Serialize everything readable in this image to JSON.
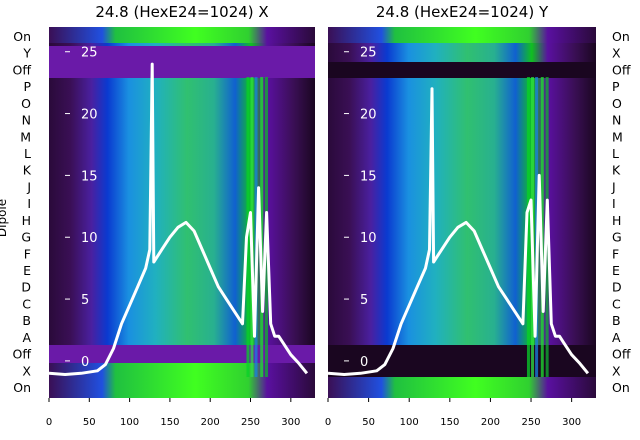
{
  "chart_data": [
    {
      "type": "heatmap",
      "title": "24.8 (HexE24=1024) X",
      "ylabel": "Dipole",
      "x_ticks": [
        "0",
        "50",
        "100",
        "150",
        "200",
        "250",
        "300"
      ],
      "xlim": [
        0,
        330
      ],
      "y_ticks": [
        "0",
        "5",
        "10",
        "15",
        "20",
        "25"
      ],
      "ylim": [
        -3,
        27
      ],
      "dipole_labels": [
        "On",
        "Y",
        "Off",
        "P",
        "O",
        "N",
        "M",
        "L",
        "K",
        "J",
        "I",
        "H",
        "G",
        "F",
        "E",
        "D",
        "C",
        "B",
        "A",
        "Off",
        "X",
        "On"
      ],
      "series": [
        {
          "name": "",
          "x": [
            0,
            20,
            40,
            60,
            70,
            80,
            90,
            100,
            110,
            120,
            125,
            128,
            130,
            135,
            140,
            150,
            160,
            170,
            180,
            190,
            200,
            210,
            220,
            230,
            240,
            245,
            250,
            255,
            260,
            265,
            270,
            275,
            280,
            285,
            290,
            300,
            310,
            320
          ],
          "y": [
            -1,
            -1.1,
            -1,
            -0.8,
            -0.3,
            1,
            3,
            4.5,
            6,
            7.5,
            9,
            24,
            8,
            8.5,
            9,
            10,
            10.8,
            11.2,
            10.5,
            9,
            7.5,
            6,
            5,
            4,
            3,
            10,
            12,
            2,
            14,
            4,
            12,
            3,
            2,
            2,
            1.5,
            0.5,
            -0.2,
            -1
          ]
        }
      ]
    },
    {
      "type": "heatmap",
      "title": "24.8 (HexE24=1024) Y",
      "x_ticks": [
        "0",
        "50",
        "100",
        "150",
        "200",
        "250",
        "300"
      ],
      "xlim": [
        0,
        330
      ],
      "y_ticks": [
        "0",
        "5",
        "10",
        "15",
        "20",
        "25"
      ],
      "ylim": [
        -3,
        27
      ],
      "dipole_labels": [
        "On",
        "X",
        "Off",
        "P",
        "O",
        "N",
        "M",
        "L",
        "K",
        "J",
        "I",
        "H",
        "G",
        "F",
        "E",
        "D",
        "C",
        "B",
        "A",
        "Off",
        "X",
        "On"
      ],
      "series": [
        {
          "name": "",
          "x": [
            0,
            20,
            40,
            60,
            70,
            80,
            90,
            100,
            110,
            120,
            125,
            128,
            130,
            135,
            140,
            150,
            160,
            170,
            180,
            190,
            200,
            210,
            220,
            230,
            240,
            245,
            250,
            255,
            260,
            265,
            270,
            275,
            280,
            285,
            290,
            300,
            310,
            320
          ],
          "y": [
            -1,
            -1.1,
            -1,
            -0.8,
            -0.3,
            1,
            3,
            4.5,
            6,
            7.5,
            9,
            22,
            8,
            8.5,
            9,
            10,
            10.8,
            11.2,
            10.5,
            9,
            7.5,
            6,
            5,
            4,
            3,
            12,
            13,
            2,
            15,
            4,
            13,
            3,
            2,
            2,
            1.5,
            0.5,
            -0.2,
            -1
          ]
        }
      ]
    }
  ]
}
